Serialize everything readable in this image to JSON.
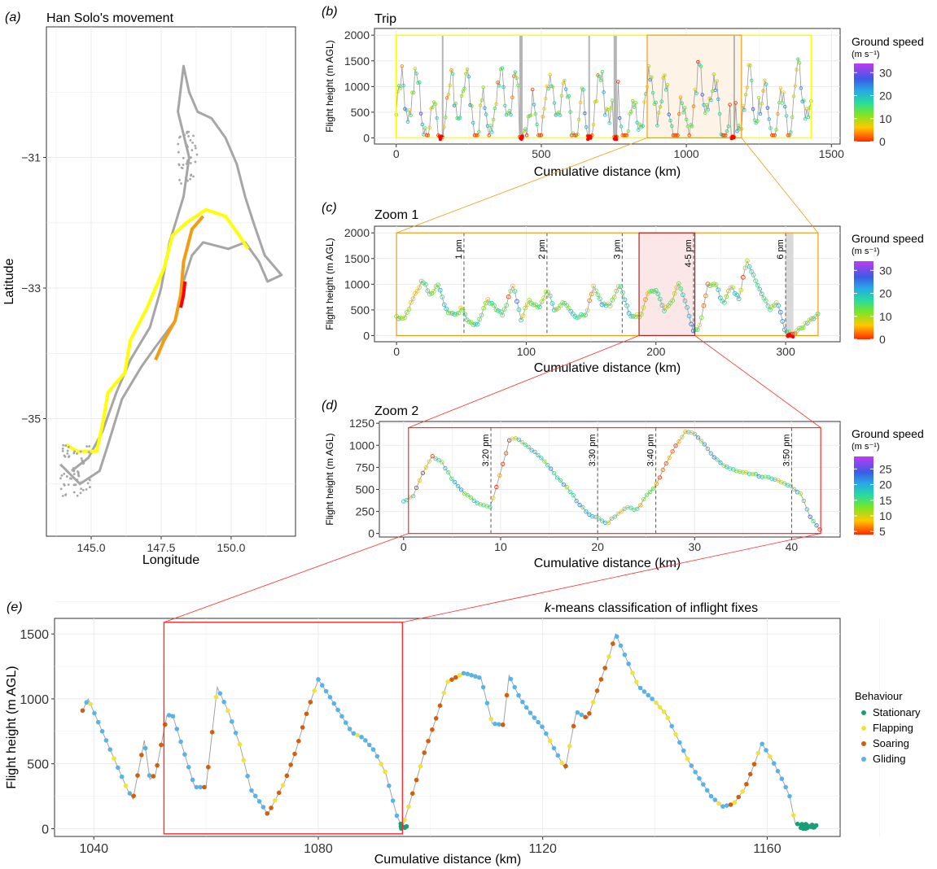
{
  "colors": {
    "track_grey": "#a6a6a6",
    "yellow": "#ffff00",
    "orange": "#f39c12",
    "red": "#ff0000",
    "zoom1_box": "#f39c12",
    "zoom2_box": "#ff2a2a",
    "grid": "#ebebeb",
    "stationary": "#1a9e77",
    "flapping": "#f2e33a",
    "soaring": "#d35f0a",
    "gliding": "#56b4e9"
  },
  "chart_data": [
    {
      "panel": "(a)",
      "type": "scatter",
      "title": "Han Solo's movement",
      "xlabel": "Longitude",
      "ylabel": "Latitude",
      "xlim": [
        143.4,
        152.3
      ],
      "ylim": [
        -36.8,
        -29.0
      ],
      "x_ticks": [
        "145.0",
        "147.5",
        "150.0"
      ],
      "y_ticks": [
        "−31",
        "−33",
        "−35"
      ],
      "grid": true,
      "series": [
        {
          "role": "full-track",
          "color": "grey",
          "points": [
            [
              143.9,
              -35.7
            ],
            [
              144.6,
              -36.0
            ],
            [
              145.3,
              -35.8
            ],
            [
              145.6,
              -35.4
            ],
            [
              146.1,
              -34.7
            ],
            [
              146.8,
              -34.2
            ],
            [
              147.3,
              -33.9
            ],
            [
              148.0,
              -33.5
            ],
            [
              148.3,
              -32.9
            ],
            [
              148.6,
              -32.5
            ],
            [
              149.0,
              -32.3
            ],
            [
              149.9,
              -32.4
            ],
            [
              150.5,
              -32.3
            ],
            [
              151.0,
              -32.6
            ],
            [
              151.3,
              -32.9
            ],
            [
              151.8,
              -32.8
            ],
            [
              151.2,
              -32.5
            ],
            [
              150.8,
              -32.0
            ],
            [
              150.5,
              -31.6
            ],
            [
              150.2,
              -31.1
            ],
            [
              149.8,
              -30.7
            ],
            [
              149.3,
              -30.4
            ],
            [
              148.8,
              -30.3
            ],
            [
              148.5,
              -30.0
            ],
            [
              148.3,
              -29.6
            ],
            [
              148.1,
              -30.3
            ],
            [
              148.5,
              -31.0
            ],
            [
              148.3,
              -31.6
            ],
            [
              147.8,
              -32.3
            ],
            [
              147.5,
              -33.0
            ],
            [
              147.1,
              -33.6
            ],
            [
              146.4,
              -34.1
            ],
            [
              145.9,
              -34.6
            ],
            [
              145.4,
              -35.2
            ],
            [
              144.9,
              -35.6
            ],
            [
              144.3,
              -35.8
            ]
          ]
        },
        {
          "role": "trip",
          "color": "yellow",
          "points": [
            [
              144.1,
              -35.4
            ],
            [
              144.5,
              -35.5
            ],
            [
              145.2,
              -35.5
            ],
            [
              145.4,
              -35.1
            ],
            [
              145.6,
              -34.6
            ],
            [
              146.2,
              -34.3
            ],
            [
              146.4,
              -33.8
            ],
            [
              147.0,
              -33.3
            ],
            [
              147.6,
              -32.7
            ],
            [
              147.9,
              -32.2
            ],
            [
              148.4,
              -32.0
            ],
            [
              149.1,
              -31.8
            ],
            [
              149.8,
              -31.9
            ],
            [
              150.3,
              -32.2
            ],
            [
              150.6,
              -32.4
            ]
          ]
        },
        {
          "role": "zoom-1",
          "color": "orange",
          "points": [
            [
              147.3,
              -34.1
            ],
            [
              147.6,
              -33.8
            ],
            [
              148.0,
              -33.5
            ],
            [
              148.2,
              -33.1
            ],
            [
              148.3,
              -32.6
            ],
            [
              148.6,
              -32.1
            ],
            [
              149.0,
              -31.9
            ]
          ]
        },
        {
          "role": "zoom-2",
          "color": "red",
          "points": [
            [
              148.2,
              -33.3
            ],
            [
              148.3,
              -33.1
            ],
            [
              148.35,
              -32.9
            ]
          ]
        }
      ]
    },
    {
      "panel": "(b)",
      "type": "scatter",
      "title": "Trip",
      "xlabel": "Cumulative distance (km)",
      "ylabel": "Flight height (m AGL)",
      "xlim": [
        -75,
        1530
      ],
      "ylim": [
        -120,
        2130
      ],
      "x_ticks": [
        0,
        500,
        1000,
        1500
      ],
      "y_ticks": [
        0,
        500,
        1000,
        1500,
        2000
      ],
      "grid": true,
      "colorbar": {
        "title": "Ground speed",
        "units": "(m s⁻¹)",
        "ticks": [
          0,
          10,
          20,
          30
        ],
        "range": [
          0,
          34
        ]
      },
      "outer_box_x": [
        0,
        1430
      ],
      "zoom_box_x": [
        865,
        1190
      ],
      "stop_lines_x": [
        160,
        430,
        665,
        755,
        1165
      ],
      "grounded_fixes_x": [
        155,
        430,
        665,
        755,
        1160
      ],
      "samples_every_km": 5
    },
    {
      "panel": "(c)",
      "type": "scatter",
      "title": "Zoom 1",
      "xlabel": "Cumulative distance (km)",
      "ylabel": "Flight height (m AGL)",
      "xlim": [
        -17,
        342
      ],
      "ylim": [
        -120,
        2130
      ],
      "x_ticks": [
        0,
        100,
        200,
        300
      ],
      "y_ticks": [
        0,
        500,
        1000,
        1500,
        2000
      ],
      "grid": true,
      "colorbar": {
        "title": "Ground speed",
        "units": "(m s⁻¹)",
        "ticks": [
          0,
          10,
          20,
          30
        ],
        "range": [
          0,
          34
        ]
      },
      "time_markers": [
        {
          "x": 52,
          "label": "1 pm"
        },
        {
          "x": 116,
          "label": "2 pm"
        },
        {
          "x": 174,
          "label": "3 pm"
        },
        {
          "x": 229,
          "label": "4-5 pm"
        },
        {
          "x": 300,
          "label": "6 pm"
        }
      ],
      "zoom_box_x": [
        187,
        230
      ],
      "profile": [
        [
          0,
          380
        ],
        [
          6,
          300
        ],
        [
          12,
          700
        ],
        [
          20,
          1080
        ],
        [
          26,
          800
        ],
        [
          32,
          1000
        ],
        [
          38,
          500
        ],
        [
          45,
          380
        ],
        [
          50,
          530
        ],
        [
          55,
          300
        ],
        [
          62,
          180
        ],
        [
          70,
          700
        ],
        [
          76,
          550
        ],
        [
          82,
          400
        ],
        [
          90,
          1000
        ],
        [
          96,
          300
        ],
        [
          102,
          700
        ],
        [
          110,
          520
        ],
        [
          116,
          920
        ],
        [
          122,
          500
        ],
        [
          130,
          650
        ],
        [
          138,
          370
        ],
        [
          146,
          400
        ],
        [
          152,
          950
        ],
        [
          158,
          620
        ],
        [
          165,
          580
        ],
        [
          172,
          1000
        ],
        [
          180,
          400
        ],
        [
          188,
          380
        ],
        [
          194,
          840
        ],
        [
          200,
          900
        ],
        [
          206,
          500
        ],
        [
          212,
          650
        ],
        [
          218,
          1040
        ],
        [
          224,
          520
        ],
        [
          229,
          60
        ],
        [
          234,
          200
        ],
        [
          240,
          980
        ],
        [
          246,
          1000
        ],
        [
          252,
          600
        ],
        [
          258,
          980
        ],
        [
          264,
          700
        ],
        [
          270,
          1500
        ],
        [
          276,
          1100
        ],
        [
          282,
          780
        ],
        [
          288,
          500
        ],
        [
          294,
          640
        ],
        [
          300,
          60
        ],
        [
          306,
          40
        ],
        [
          312,
          150
        ],
        [
          318,
          280
        ],
        [
          325,
          420
        ]
      ]
    },
    {
      "panel": "(d)",
      "type": "scatter",
      "title": "Zoom 2",
      "xlabel": "Cumulative distance (km)",
      "ylabel": "Flight height (m AGL)",
      "xlim": [
        -2.5,
        45
      ],
      "ylim": [
        -40,
        1270
      ],
      "x_ticks": [
        0,
        10,
        20,
        30,
        40
      ],
      "y_ticks": [
        0,
        250,
        500,
        750,
        1000,
        1250
      ],
      "grid": true,
      "colorbar": {
        "title": "Ground speed",
        "units": "(m s⁻¹)",
        "ticks": [
          5,
          10,
          15,
          20,
          25
        ],
        "range": [
          4,
          29
        ]
      },
      "time_markers": [
        {
          "x": 9,
          "label": "3:20 pm"
        },
        {
          "x": 20,
          "label": "3:30 pm"
        },
        {
          "x": 26,
          "label": "3:40 pm"
        },
        {
          "x": 40,
          "label": "3:50 pm"
        }
      ],
      "profile": [
        [
          0,
          370
        ],
        [
          1,
          420
        ],
        [
          2,
          700
        ],
        [
          3,
          880
        ],
        [
          4,
          800
        ],
        [
          5,
          620
        ],
        [
          6,
          480
        ],
        [
          7,
          400
        ],
        [
          8,
          320
        ],
        [
          9,
          300
        ],
        [
          10,
          700
        ],
        [
          11,
          1090
        ],
        [
          12,
          1060
        ],
        [
          13,
          970
        ],
        [
          14,
          880
        ],
        [
          15,
          760
        ],
        [
          16,
          620
        ],
        [
          17,
          500
        ],
        [
          18,
          350
        ],
        [
          19,
          230
        ],
        [
          20,
          170
        ],
        [
          21,
          120
        ],
        [
          22,
          210
        ],
        [
          23,
          300
        ],
        [
          24,
          260
        ],
        [
          25,
          420
        ],
        [
          26,
          550
        ],
        [
          27,
          780
        ],
        [
          28,
          980
        ],
        [
          29,
          1150
        ],
        [
          30,
          1130
        ],
        [
          31,
          1010
        ],
        [
          32,
          860
        ],
        [
          33,
          780
        ],
        [
          34,
          720
        ],
        [
          35,
          690
        ],
        [
          36,
          680
        ],
        [
          37,
          640
        ],
        [
          38,
          630
        ],
        [
          39,
          580
        ],
        [
          40,
          530
        ],
        [
          41,
          440
        ],
        [
          42,
          160
        ],
        [
          43,
          40
        ]
      ]
    },
    {
      "panel": "(e)",
      "type": "scatter",
      "title": "k-means classification of inflight fixes",
      "xlabel": "Cumulative distance (km)",
      "ylabel": "Flight height (m AGL)",
      "xlim": [
        1033,
        1173
      ],
      "ylim": [
        -60,
        1620
      ],
      "x_ticks": [
        1040,
        1080,
        1120,
        1160
      ],
      "y_ticks": [
        0,
        500,
        1000,
        1500
      ],
      "grid": true,
      "legend": {
        "title": "Behaviour",
        "placement": "right",
        "entries": [
          "Stationary",
          "Flapping",
          "Soaring",
          "Gliding"
        ]
      },
      "zoom_box_x": [
        1052.5,
        1095
      ],
      "profile": [
        [
          1038,
          910
        ],
        [
          1039,
          1000
        ],
        [
          1041,
          800
        ],
        [
          1044,
          500
        ],
        [
          1046,
          300
        ],
        [
          1047,
          230
        ],
        [
          1049,
          680
        ],
        [
          1050,
          380
        ],
        [
          1051,
          420
        ],
        [
          1053,
          870
        ],
        [
          1054,
          880
        ],
        [
          1056,
          600
        ],
        [
          1058,
          320
        ],
        [
          1060,
          320
        ],
        [
          1062,
          1090
        ],
        [
          1064,
          900
        ],
        [
          1066,
          650
        ],
        [
          1068,
          300
        ],
        [
          1070,
          180
        ],
        [
          1071,
          110
        ],
        [
          1074,
          360
        ],
        [
          1076,
          600
        ],
        [
          1078,
          900
        ],
        [
          1080,
          1150
        ],
        [
          1082,
          1020
        ],
        [
          1084,
          880
        ],
        [
          1086,
          740
        ],
        [
          1088,
          700
        ],
        [
          1090,
          600
        ],
        [
          1092,
          430
        ],
        [
          1094,
          100
        ],
        [
          1095,
          10
        ],
        [
          1097,
          300
        ],
        [
          1099,
          600
        ],
        [
          1101,
          850
        ],
        [
          1103,
          1130
        ],
        [
          1106,
          1200
        ],
        [
          1109,
          1160
        ],
        [
          1111,
          810
        ],
        [
          1113,
          800
        ],
        [
          1114,
          1180
        ],
        [
          1116,
          1000
        ],
        [
          1118,
          880
        ],
        [
          1120,
          780
        ],
        [
          1122,
          620
        ],
        [
          1124,
          460
        ],
        [
          1126,
          900
        ],
        [
          1128,
          850
        ],
        [
          1130,
          1100
        ],
        [
          1132,
          1350
        ],
        [
          1133,
          1500
        ],
        [
          1135,
          1300
        ],
        [
          1137,
          1100
        ],
        [
          1140,
          980
        ],
        [
          1142,
          880
        ],
        [
          1144,
          700
        ],
        [
          1146,
          520
        ],
        [
          1148,
          380
        ],
        [
          1150,
          250
        ],
        [
          1152,
          170
        ],
        [
          1154,
          190
        ],
        [
          1156,
          310
        ],
        [
          1158,
          530
        ],
        [
          1159,
          660
        ],
        [
          1161,
          520
        ],
        [
          1163,
          350
        ],
        [
          1164,
          250
        ],
        [
          1165,
          40
        ],
        [
          1167,
          20
        ]
      ]
    }
  ],
  "panels": {
    "a": {
      "tag": "(a)",
      "title": "Han Solo's movement"
    },
    "b": {
      "tag": "(b)",
      "title": "Trip"
    },
    "c": {
      "tag": "(c)",
      "title": "Zoom 1"
    },
    "d": {
      "tag": "(d)",
      "title": "Zoom 2"
    },
    "e": {
      "tag": "(e)",
      "title_italic": "k",
      "title_rest": "-means classification of inflight fixes"
    }
  },
  "labels": {
    "longitude": "Longitude",
    "latitude": "Latitude",
    "cumdist": "Cumulative distance (km)",
    "height": "Flight height (m AGL)",
    "ground_speed": "Ground speed",
    "speed_units": "(m s⁻¹)",
    "behaviour": "Behaviour"
  }
}
